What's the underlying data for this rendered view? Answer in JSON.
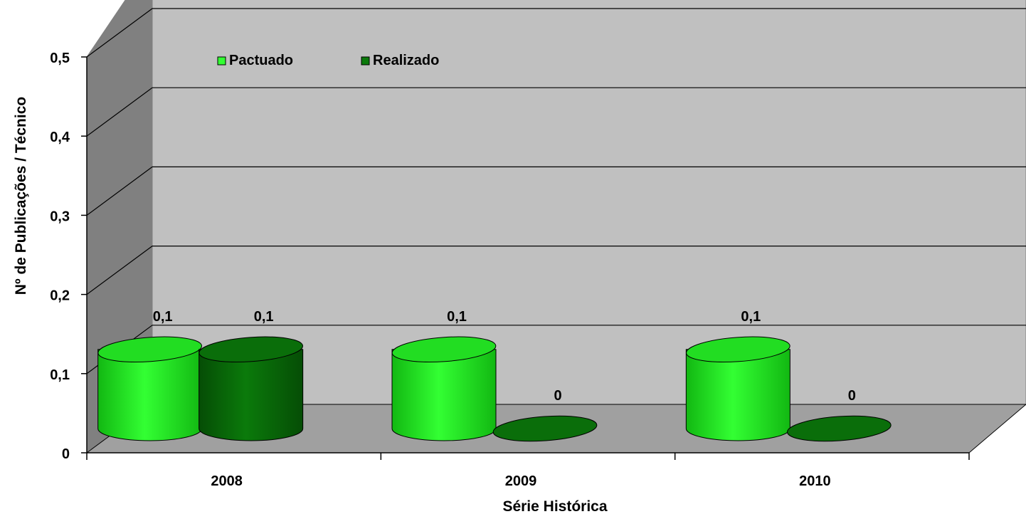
{
  "chart_data": {
    "type": "bar",
    "title": "",
    "xlabel": "Série Histórica",
    "ylabel": "Nº de Publicações / Técnico",
    "categories": [
      "2008",
      "2009",
      "2010"
    ],
    "ylim": [
      0,
      0.5
    ],
    "yticks": [
      "0",
      "0,1",
      "0,2",
      "0,3",
      "0,4",
      "0,5"
    ],
    "series": [
      {
        "name": "Pactuado",
        "values": [
          0.1,
          0.1,
          0.1
        ],
        "labels": [
          "0,1",
          "0,1",
          "0,1"
        ],
        "color": "#33ff33",
        "color_dark": "#12b812"
      },
      {
        "name": "Realizado",
        "values": [
          0.1,
          0,
          0
        ],
        "labels": [
          "0,1",
          "0",
          "0"
        ],
        "color": "#0b7a0b",
        "color_dark": "#054d05"
      }
    ],
    "grid": true,
    "legend": "top-left",
    "style": "3d-cylinder",
    "colors": {
      "back_wall": "#c0c0c0",
      "side_wall": "#808080",
      "floor": "#a0a0a0",
      "gridline": "#000000"
    }
  }
}
